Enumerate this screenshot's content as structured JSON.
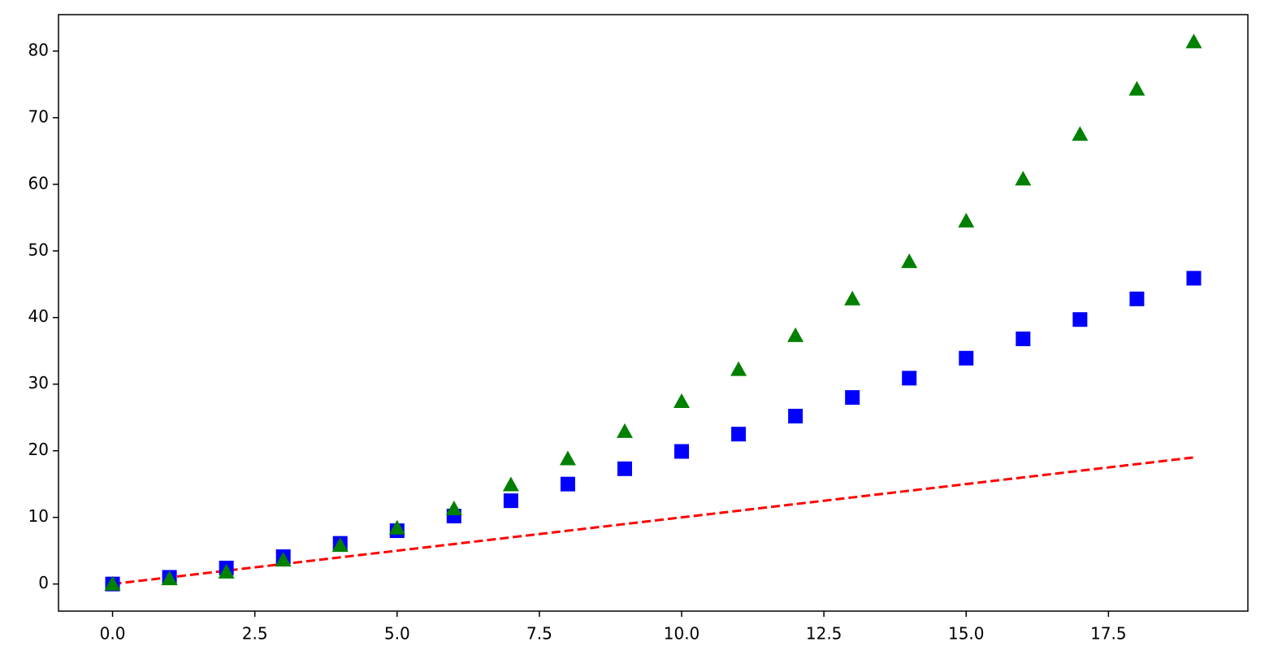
{
  "chart_data": {
    "type": "scatter",
    "x": [
      0,
      1,
      2,
      3,
      4,
      5,
      6,
      7,
      8,
      9,
      10,
      11,
      12,
      13,
      14,
      15,
      16,
      17,
      18,
      19
    ],
    "series": [
      {
        "style": "line",
        "dash": true,
        "color": "#ff0000",
        "values": [
          0,
          1,
          2,
          3,
          4,
          5,
          6,
          7,
          8,
          9,
          10,
          11,
          12,
          13,
          14,
          15,
          16,
          17,
          18,
          19
        ]
      },
      {
        "style": "square",
        "color": "#0000ff",
        "values": [
          0,
          1,
          2.4,
          4.1,
          6.1,
          8,
          10.2,
          12.5,
          15,
          17.3,
          19.9,
          22.5,
          25.2,
          28,
          30.9,
          33.9,
          36.8,
          39.7,
          42.8,
          45.9
        ]
      },
      {
        "style": "triangle",
        "color": "#008000",
        "values": [
          0,
          0.8,
          1.8,
          3.6,
          5.8,
          8.4,
          11.3,
          14.9,
          18.8,
          22.9,
          27.4,
          32.2,
          37.3,
          42.8,
          48.4,
          54.5,
          60.8,
          67.5,
          74.3,
          81.4
        ]
      }
    ],
    "xlim": [
      -0.95,
      19.95
    ],
    "xticks": [
      {
        "value": 0,
        "label": "0.0"
      },
      2.5,
      {
        "value": 5,
        "label": "5.0"
      },
      7.5,
      {
        "value": 10,
        "label": "10.0"
      },
      12.5,
      {
        "value": 15,
        "label": "15.0"
      },
      17.5
    ],
    "ylim": [
      -4.07,
      85.47
    ],
    "yticks": [
      0,
      10,
      20,
      30,
      40,
      50,
      60,
      70,
      80
    ]
  }
}
